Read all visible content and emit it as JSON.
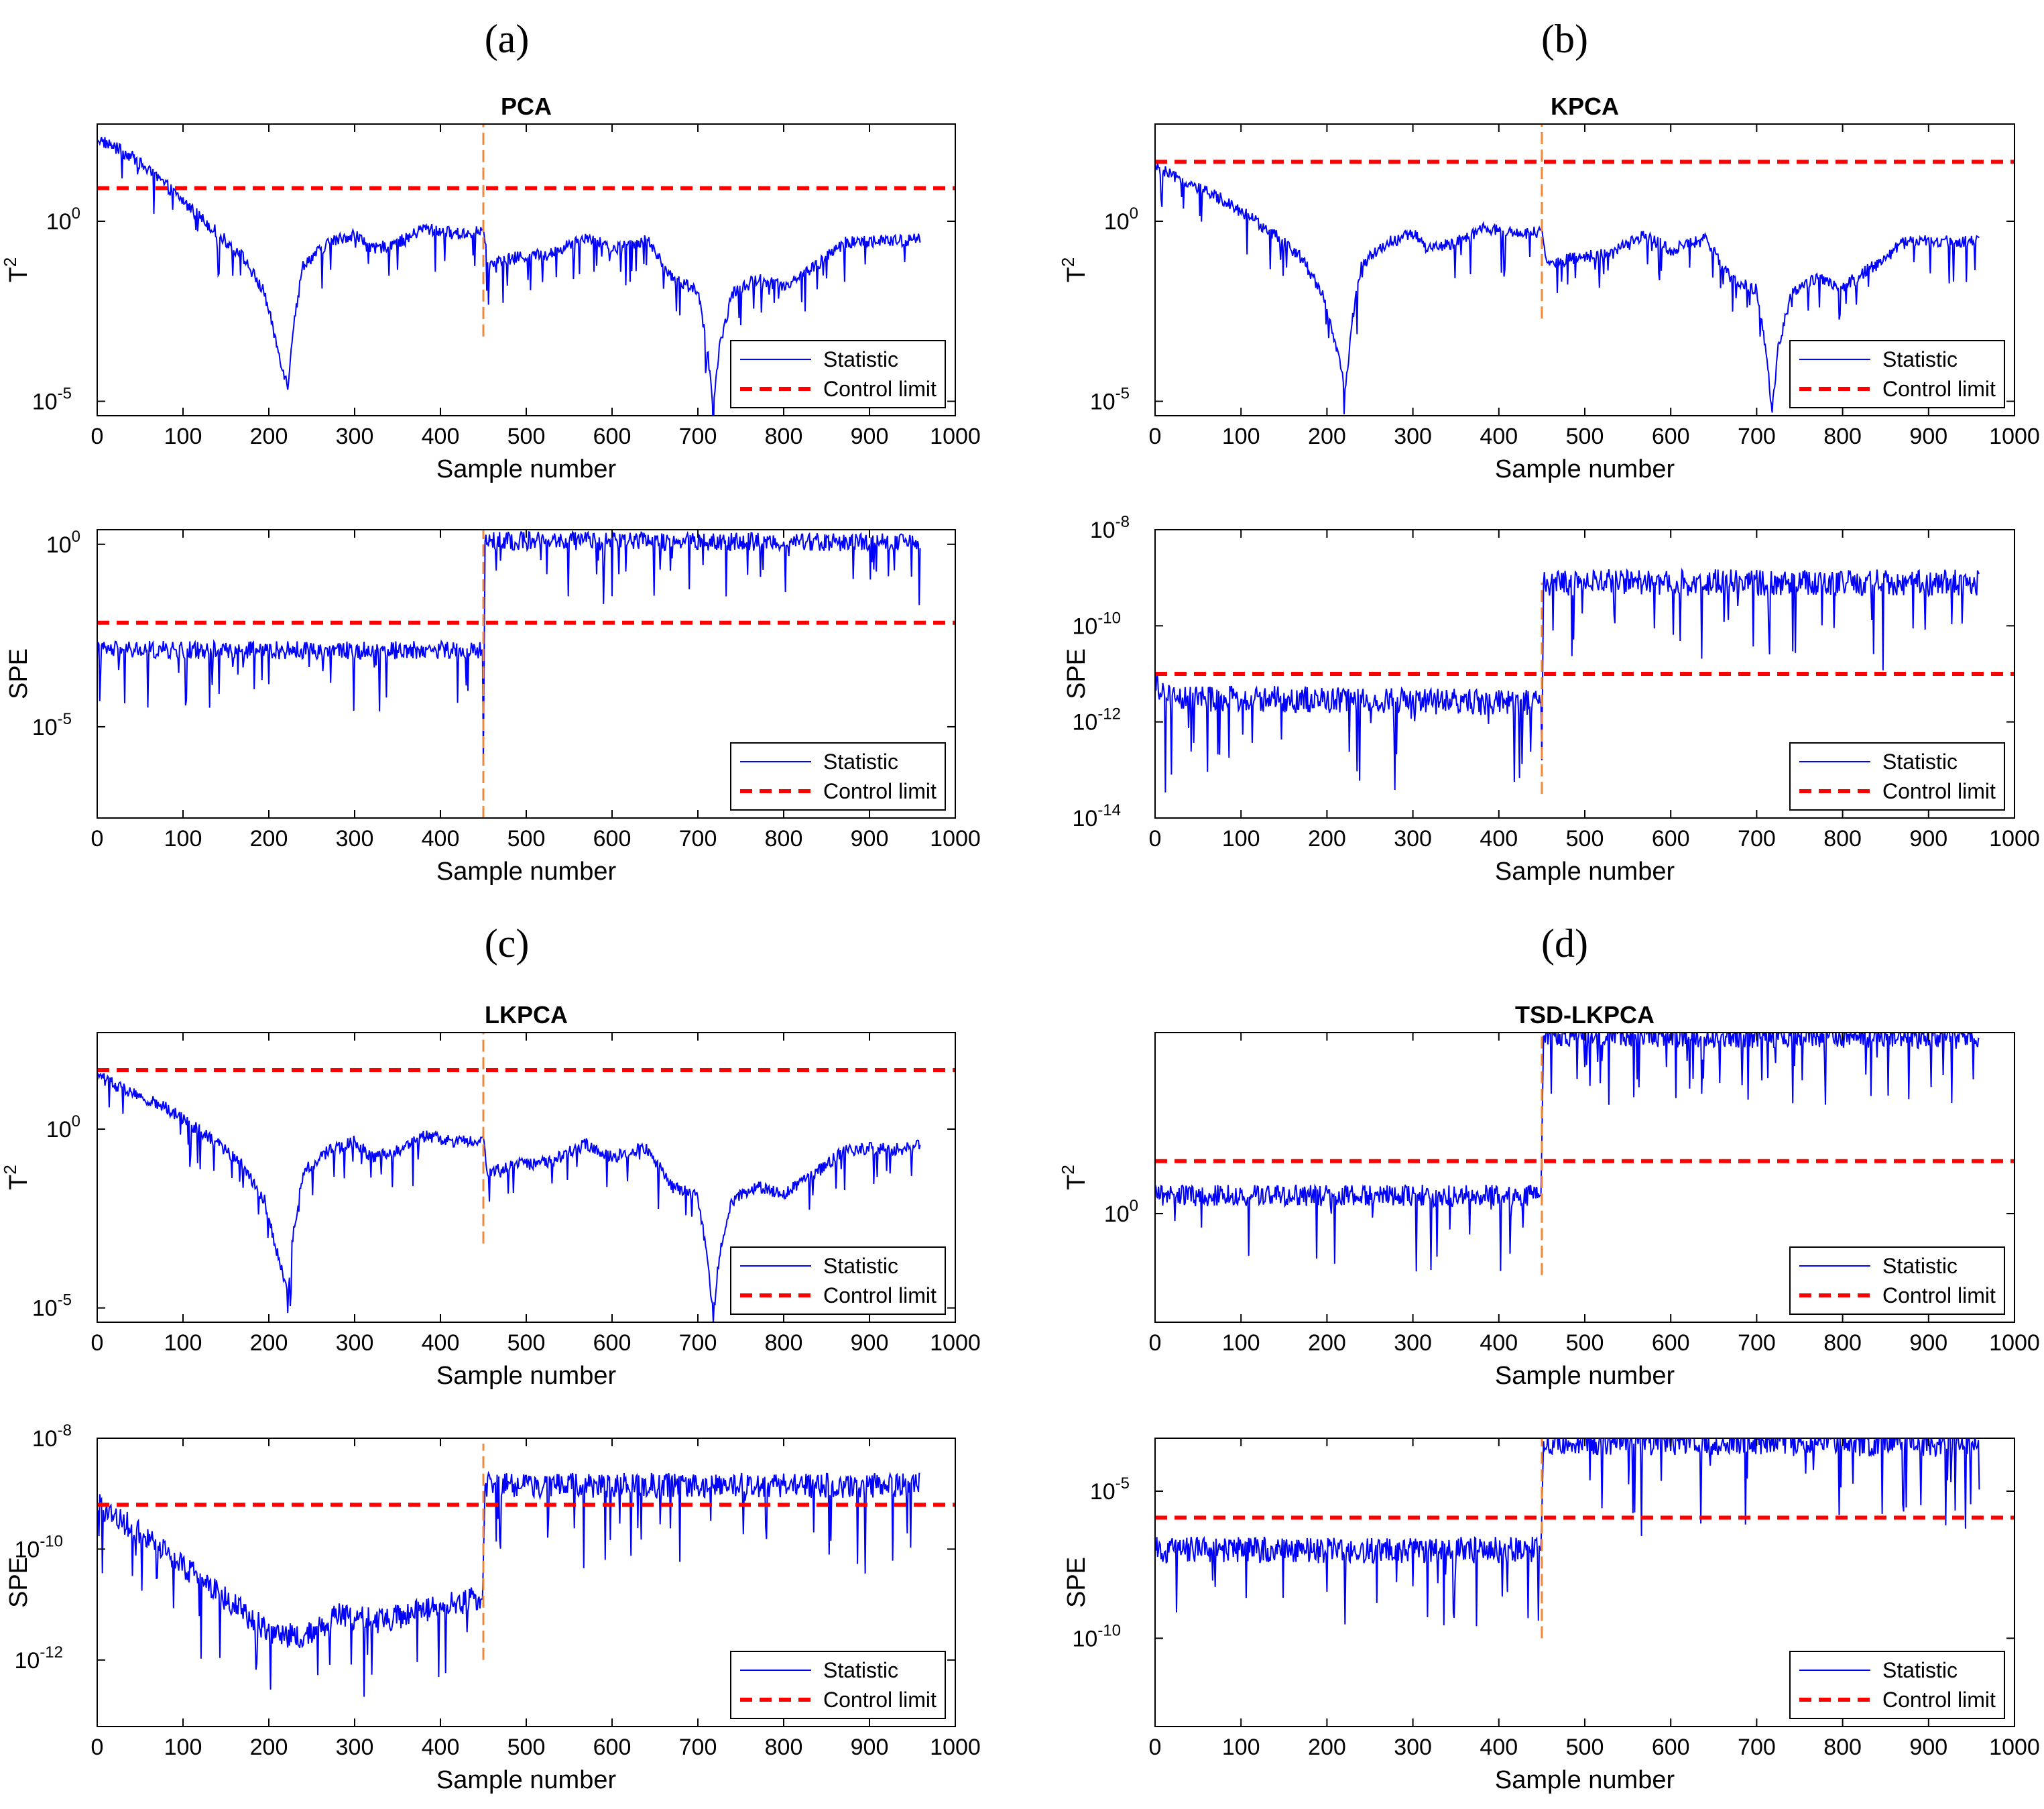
{
  "figure": {
    "panels": [
      {
        "id": "a",
        "label": "(a)"
      },
      {
        "id": "b",
        "label": "(b)"
      },
      {
        "id": "c",
        "label": "(c)"
      },
      {
        "id": "d",
        "label": "(d)"
      }
    ]
  },
  "colors": {
    "statistic": "#0000ff",
    "control_limit": "#ff0000",
    "fault_line": "#f0883a",
    "axis": "#000000"
  },
  "chart_data": [
    {
      "panel": "a",
      "type": "line",
      "title": "PCA",
      "xlabel": "Sample number",
      "ylabel": "T",
      "ylabel_sup": "2",
      "xlim": [
        0,
        1000
      ],
      "xticks": [
        0,
        100,
        200,
        300,
        400,
        500,
        600,
        700,
        800,
        900,
        1000
      ],
      "yscale": "log",
      "ylim_log10": [
        -5.4,
        2.7
      ],
      "yticks": [
        {
          "exp": 0,
          "text": "10",
          "sup": "0"
        },
        {
          "exp": -5,
          "text": "10",
          "sup": "-5"
        }
      ],
      "fault_sample": 450,
      "fault_span_log10": [
        -3.2,
        2.7
      ],
      "legend": [
        "Statistic",
        "Control limit"
      ],
      "series": [
        {
          "name": "Control limit",
          "style": "dashed",
          "values_log10": [
            0.92
          ]
        },
        {
          "name": "Statistic",
          "style": "solid",
          "n": 960,
          "keypoints_log10": [
            [
              0,
              2.3
            ],
            [
              40,
              1.8
            ],
            [
              80,
              1.0
            ],
            [
              130,
              -0.1
            ],
            [
              170,
              -1.0
            ],
            [
              195,
              -2.0
            ],
            [
              210,
              -3.5
            ],
            [
              222,
              -4.6
            ],
            [
              228,
              -3.0
            ],
            [
              240,
              -1.2
            ],
            [
              270,
              -0.6
            ],
            [
              300,
              -0.35
            ],
            [
              320,
              -0.8
            ],
            [
              360,
              -0.5
            ],
            [
              380,
              -0.2
            ],
            [
              420,
              -0.35
            ],
            [
              445,
              -0.3
            ],
            [
              450,
              -0.2
            ],
            [
              455,
              -1.2
            ],
            [
              490,
              -1.0
            ],
            [
              530,
              -0.9
            ],
            [
              570,
              -0.4
            ],
            [
              600,
              -0.8
            ],
            [
              640,
              -0.5
            ],
            [
              670,
              -1.6
            ],
            [
              700,
              -1.9
            ],
            [
              712,
              -3.8
            ],
            [
              718,
              -5.3
            ],
            [
              725,
              -3.5
            ],
            [
              740,
              -2.0
            ],
            [
              770,
              -1.6
            ],
            [
              800,
              -1.8
            ],
            [
              840,
              -1.2
            ],
            [
              870,
              -0.6
            ],
            [
              900,
              -0.55
            ],
            [
              940,
              -0.55
            ],
            [
              960,
              -0.45
            ]
          ],
          "noise_log10": 0.35
        }
      ]
    },
    {
      "panel": "a",
      "type": "line",
      "title": "",
      "xlabel": "Sample number",
      "ylabel": "SPE",
      "ylabel_sup": "",
      "xlim": [
        0,
        1000
      ],
      "xticks": [
        0,
        100,
        200,
        300,
        400,
        500,
        600,
        700,
        800,
        900,
        1000
      ],
      "yscale": "log",
      "ylim_log10": [
        -7.5,
        0.4
      ],
      "yticks": [
        {
          "exp": 0,
          "text": "10",
          "sup": "0"
        },
        {
          "exp": -5,
          "text": "10",
          "sup": "-5"
        }
      ],
      "fault_sample": 450,
      "fault_span_log10": [
        -7.5,
        0.4
      ],
      "legend": [
        "Statistic",
        "Control limit"
      ],
      "series": [
        {
          "name": "Control limit",
          "style": "dashed",
          "values_log10": [
            -2.15
          ]
        },
        {
          "name": "Statistic",
          "style": "solid",
          "n": 960,
          "keypoints_log10": [
            [
              0,
              -2.9
            ],
            [
              449,
              -2.9
            ],
            [
              450,
              -6.0
            ],
            [
              452,
              0.1
            ],
            [
              960,
              0.05
            ]
          ],
          "noise_log10": 0.5
        }
      ]
    },
    {
      "panel": "b",
      "type": "line",
      "title": "KPCA",
      "xlabel": "Sample number",
      "ylabel": "T",
      "ylabel_sup": "2",
      "xlim": [
        0,
        1000
      ],
      "xticks": [
        0,
        100,
        200,
        300,
        400,
        500,
        600,
        700,
        800,
        900,
        1000
      ],
      "yscale": "log",
      "ylim_log10": [
        -5.4,
        2.7
      ],
      "yticks": [
        {
          "exp": 0,
          "text": "10",
          "sup": "0"
        },
        {
          "exp": -5,
          "text": "10",
          "sup": "-5"
        }
      ],
      "fault_sample": 450,
      "fault_span_log10": [
        -2.7,
        2.7
      ],
      "legend": [
        "Statistic",
        "Control limit"
      ],
      "series": [
        {
          "name": "Control limit",
          "style": "dashed",
          "values_log10": [
            1.65
          ]
        },
        {
          "name": "Statistic",
          "style": "solid",
          "n": 960,
          "keypoints_log10": [
            [
              0,
              1.5
            ],
            [
              40,
              1.0
            ],
            [
              80,
              0.6
            ],
            [
              130,
              -0.2
            ],
            [
              170,
              -1.0
            ],
            [
              195,
              -2.0
            ],
            [
              210,
              -3.5
            ],
            [
              222,
              -4.6
            ],
            [
              228,
              -3.0
            ],
            [
              240,
              -1.2
            ],
            [
              270,
              -0.6
            ],
            [
              300,
              -0.35
            ],
            [
              320,
              -0.8
            ],
            [
              360,
              -0.5
            ],
            [
              380,
              -0.2
            ],
            [
              420,
              -0.35
            ],
            [
              445,
              -0.3
            ],
            [
              450,
              -0.2
            ],
            [
              455,
              -1.2
            ],
            [
              490,
              -1.0
            ],
            [
              530,
              -0.9
            ],
            [
              570,
              -0.4
            ],
            [
              600,
              -0.8
            ],
            [
              640,
              -0.5
            ],
            [
              670,
              -1.6
            ],
            [
              700,
              -1.9
            ],
            [
              712,
              -3.8
            ],
            [
              718,
              -5.3
            ],
            [
              725,
              -3.5
            ],
            [
              740,
              -2.0
            ],
            [
              770,
              -1.6
            ],
            [
              800,
              -1.8
            ],
            [
              840,
              -1.2
            ],
            [
              870,
              -0.6
            ],
            [
              900,
              -0.55
            ],
            [
              940,
              -0.55
            ],
            [
              960,
              -0.45
            ]
          ],
          "noise_log10": 0.35
        }
      ]
    },
    {
      "panel": "b",
      "type": "line",
      "title": "",
      "xlabel": "Sample number",
      "ylabel": "SPE",
      "ylabel_sup": "",
      "xlim": [
        0,
        1000
      ],
      "xticks": [
        0,
        100,
        200,
        300,
        400,
        500,
        600,
        700,
        800,
        900,
        1000
      ],
      "yscale": "log",
      "ylim_log10": [
        -14,
        -8
      ],
      "yticks": [
        {
          "exp": -8,
          "text": "10",
          "sup": "-8"
        },
        {
          "exp": -10,
          "text": "10",
          "sup": "-10"
        },
        {
          "exp": -12,
          "text": "10",
          "sup": "-12"
        },
        {
          "exp": -14,
          "text": "10",
          "sup": "-14"
        }
      ],
      "fault_sample": 450,
      "fault_span_log10": [
        -13.5,
        -9.1
      ],
      "legend": [
        "Statistic",
        "Control limit"
      ],
      "series": [
        {
          "name": "Control limit",
          "style": "dashed",
          "values_log10": [
            -11.0
          ]
        },
        {
          "name": "Statistic",
          "style": "solid",
          "n": 960,
          "keypoints_log10": [
            [
              0,
              -11.1
            ],
            [
              10,
              -11.5
            ],
            [
              449,
              -11.6
            ],
            [
              450,
              -12.8
            ],
            [
              452,
              -9.1
            ],
            [
              960,
              -9.1
            ]
          ],
          "noise_log10": 0.55
        }
      ]
    },
    {
      "panel": "c",
      "type": "line",
      "title": "LKPCA",
      "xlabel": "Sample number",
      "ylabel": "T",
      "ylabel_sup": "2",
      "xlim": [
        0,
        1000
      ],
      "xticks": [
        0,
        100,
        200,
        300,
        400,
        500,
        600,
        700,
        800,
        900,
        1000
      ],
      "yscale": "log",
      "ylim_log10": [
        -5.4,
        2.7
      ],
      "yticks": [
        {
          "exp": 0,
          "text": "10",
          "sup": "0"
        },
        {
          "exp": -5,
          "text": "10",
          "sup": "-5"
        }
      ],
      "fault_sample": 450,
      "fault_span_log10": [
        -3.2,
        2.7
      ],
      "legend": [
        "Statistic",
        "Control limit"
      ],
      "series": [
        {
          "name": "Control limit",
          "style": "dashed",
          "values_log10": [
            1.65
          ]
        },
        {
          "name": "Statistic",
          "style": "solid",
          "n": 960,
          "keypoints_log10": [
            [
              0,
              1.5
            ],
            [
              40,
              1.0
            ],
            [
              80,
              0.6
            ],
            [
              130,
              -0.2
            ],
            [
              170,
              -1.0
            ],
            [
              195,
              -2.0
            ],
            [
              210,
              -3.5
            ],
            [
              222,
              -4.6
            ],
            [
              228,
              -3.0
            ],
            [
              240,
              -1.2
            ],
            [
              270,
              -0.6
            ],
            [
              300,
              -0.35
            ],
            [
              320,
              -0.8
            ],
            [
              360,
              -0.5
            ],
            [
              380,
              -0.2
            ],
            [
              420,
              -0.35
            ],
            [
              445,
              -0.3
            ],
            [
              450,
              -0.2
            ],
            [
              455,
              -1.2
            ],
            [
              490,
              -1.0
            ],
            [
              530,
              -0.9
            ],
            [
              570,
              -0.4
            ],
            [
              600,
              -0.8
            ],
            [
              640,
              -0.5
            ],
            [
              670,
              -1.6
            ],
            [
              700,
              -1.9
            ],
            [
              712,
              -3.8
            ],
            [
              718,
              -5.3
            ],
            [
              725,
              -3.5
            ],
            [
              740,
              -2.0
            ],
            [
              770,
              -1.6
            ],
            [
              800,
              -1.8
            ],
            [
              840,
              -1.2
            ],
            [
              870,
              -0.6
            ],
            [
              900,
              -0.55
            ],
            [
              940,
              -0.55
            ],
            [
              960,
              -0.45
            ]
          ],
          "noise_log10": 0.35
        }
      ]
    },
    {
      "panel": "c",
      "type": "line",
      "title": "",
      "xlabel": "Sample number",
      "ylabel": "SPE",
      "ylabel_sup": "",
      "xlim": [
        0,
        1000
      ],
      "xticks": [
        0,
        100,
        200,
        300,
        400,
        500,
        600,
        700,
        800,
        900,
        1000
      ],
      "yscale": "log",
      "ylim_log10": [
        -13.2,
        -8
      ],
      "yticks": [
        {
          "exp": -8,
          "text": "10",
          "sup": "-8"
        },
        {
          "exp": -10,
          "text": "10",
          "sup": "-10"
        },
        {
          "exp": -12,
          "text": "10",
          "sup": "-12"
        }
      ],
      "fault_sample": 450,
      "fault_span_log10": [
        -12.0,
        -8.1
      ],
      "legend": [
        "Statistic",
        "Control limit"
      ],
      "series": [
        {
          "name": "Control limit",
          "style": "dashed",
          "values_log10": [
            -9.2
          ]
        },
        {
          "name": "Statistic",
          "style": "solid",
          "n": 960,
          "keypoints_log10": [
            [
              0,
              -9.2
            ],
            [
              50,
              -9.7
            ],
            [
              100,
              -10.3
            ],
            [
              150,
              -10.9
            ],
            [
              200,
              -11.5
            ],
            [
              240,
              -11.6
            ],
            [
              280,
              -11.2
            ],
            [
              330,
              -11.3
            ],
            [
              380,
              -11.1
            ],
            [
              440,
              -10.9
            ],
            [
              449,
              -10.9
            ],
            [
              452,
              -8.85
            ],
            [
              960,
              -8.85
            ]
          ],
          "noise_log10": 0.45
        }
      ]
    },
    {
      "panel": "d",
      "type": "line",
      "title": "TSD-LKPCA",
      "xlabel": "Sample number",
      "ylabel": "T",
      "ylabel_sup": "2",
      "xlim": [
        0,
        1000
      ],
      "xticks": [
        0,
        100,
        200,
        300,
        400,
        500,
        600,
        700,
        800,
        900,
        1000
      ],
      "yscale": "log",
      "ylim_log10": [
        -3.0,
        5.0
      ],
      "yticks": [
        {
          "exp": 0,
          "text": "10",
          "sup": "0"
        }
      ],
      "fault_sample": 450,
      "fault_span_log10": [
        -1.7,
        5.0
      ],
      "legend": [
        "Statistic",
        "Control limit"
      ],
      "series": [
        {
          "name": "Control limit",
          "style": "dashed",
          "values_log10": [
            1.45
          ]
        },
        {
          "name": "Statistic",
          "style": "solid",
          "n": 960,
          "keypoints_log10": [
            [
              0,
              0.5
            ],
            [
              449,
              0.5
            ],
            [
              452,
              4.9
            ],
            [
              960,
              4.85
            ]
          ],
          "noise_log10": 0.6
        }
      ]
    },
    {
      "panel": "d",
      "type": "line",
      "title": "",
      "xlabel": "Sample number",
      "ylabel": "SPE",
      "ylabel_sup": "",
      "xlim": [
        0,
        1000
      ],
      "xticks": [
        0,
        100,
        200,
        300,
        400,
        500,
        600,
        700,
        800,
        900,
        1000
      ],
      "yscale": "log",
      "ylim_log10": [
        -13,
        -3.2
      ],
      "yticks": [
        {
          "exp": -5,
          "text": "10",
          "sup": "-5"
        },
        {
          "exp": -10,
          "text": "10",
          "sup": "-10"
        }
      ],
      "fault_sample": 450,
      "fault_span_log10": [
        -10.0,
        -3.2
      ],
      "legend": [
        "Statistic",
        "Control limit"
      ],
      "series": [
        {
          "name": "Control limit",
          "style": "dashed",
          "values_log10": [
            -5.9
          ]
        },
        {
          "name": "Statistic",
          "style": "solid",
          "n": 960,
          "keypoints_log10": [
            [
              0,
              -7.0
            ],
            [
              449,
              -7.0
            ],
            [
              452,
              -3.3
            ],
            [
              960,
              -3.4
            ]
          ],
          "noise_log10": 0.9
        }
      ]
    }
  ]
}
